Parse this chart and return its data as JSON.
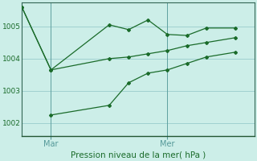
{
  "title": "Pression niveau de la mer( hPa )",
  "bg_color": "#cceee8",
  "line_color": "#1a6b2a",
  "grid_color": "#99cccc",
  "ylim": [
    1001.6,
    1005.75
  ],
  "yticks": [
    1002,
    1003,
    1004,
    1005
  ],
  "xlim": [
    0,
    12
  ],
  "x_tick_positions": [
    1.5,
    7.5
  ],
  "x_tick_labels": [
    "Mar",
    "Mer"
  ],
  "x_vline_positions": [
    1.5,
    7.5
  ],
  "line1_x": [
    0,
    1.5,
    4.5,
    5.5,
    6.5,
    7.5,
    8.5,
    9.5,
    11.0
  ],
  "line1_y": [
    1005.6,
    1003.65,
    1005.05,
    1004.9,
    1005.2,
    1004.75,
    1004.72,
    1004.95,
    1004.95
  ],
  "line2_x": [
    0,
    1.5,
    4.5,
    5.5,
    6.5,
    7.5,
    8.5,
    9.5,
    11.0
  ],
  "line2_y": [
    1005.6,
    1003.65,
    1004.0,
    1004.05,
    1004.15,
    1004.25,
    1004.4,
    1004.5,
    1004.65
  ],
  "line3_x": [
    1.5,
    4.5,
    5.5,
    6.5,
    7.5,
    8.5,
    9.5,
    11.0
  ],
  "line3_y": [
    1002.25,
    1002.55,
    1003.25,
    1003.55,
    1003.65,
    1003.85,
    1004.05,
    1004.2
  ]
}
